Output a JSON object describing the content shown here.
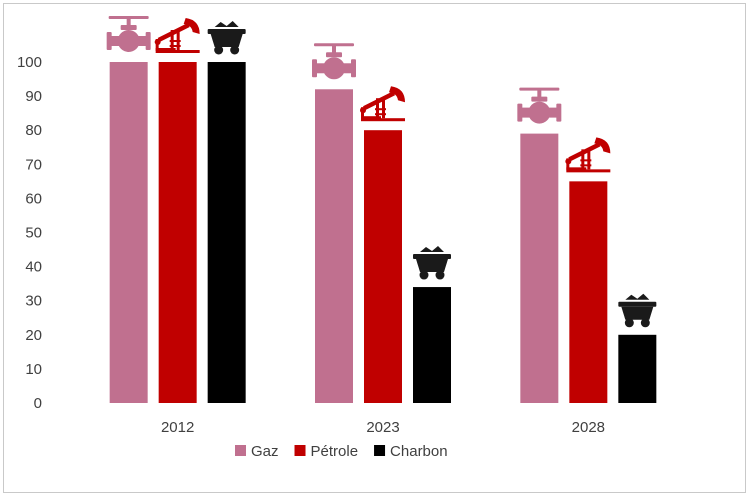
{
  "chart_data": {
    "type": "bar",
    "title": "",
    "xlabel": "",
    "ylabel": "",
    "categories": [
      "2012",
      "2023",
      "2028"
    ],
    "series": [
      {
        "name": "Gaz",
        "values": [
          100,
          92,
          79
        ],
        "color": "#c0708f",
        "icon": "gas-valve-icon"
      },
      {
        "name": "Pétrole",
        "values": [
          100,
          80,
          65
        ],
        "color": "#c00000",
        "icon": "oil-pump-icon"
      },
      {
        "name": "Charbon",
        "values": [
          100,
          34,
          20
        ],
        "color": "#000000",
        "icon": "coal-cart-icon"
      }
    ],
    "ylim": [
      0,
      100
    ],
    "yticks": [
      0,
      10,
      20,
      30,
      40,
      50,
      60,
      70,
      80,
      90,
      100
    ],
    "grid": false,
    "legend_position": "bottom"
  }
}
